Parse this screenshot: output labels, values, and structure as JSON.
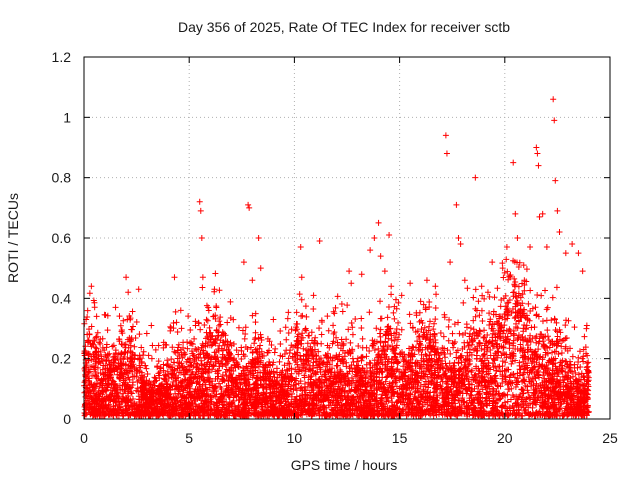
{
  "chart_data": {
    "type": "scatter",
    "title": "Day 356 of 2025, Rate Of TEC Index for receiver sctb",
    "xlabel": "GPS time / hours",
    "ylabel": "ROTI / TECUs",
    "xlim": [
      0,
      25
    ],
    "ylim": [
      0,
      1.2
    ],
    "xticks": [
      0,
      5,
      10,
      15,
      20,
      25
    ],
    "yticks": [
      0,
      0.2,
      0.4,
      0.6,
      0.8,
      1,
      1.2
    ],
    "grid": true,
    "marker": "+",
    "color": "#ff0000",
    "series": [
      {
        "name": "ROTI",
        "points": [
          [
            0.1,
            0.33
          ],
          [
            0.15,
            0.28
          ],
          [
            0.35,
            0.44
          ],
          [
            0.6,
            0.34
          ],
          [
            1.5,
            0.37
          ],
          [
            2.0,
            0.47
          ],
          [
            2.1,
            0.42
          ],
          [
            2.6,
            0.43
          ],
          [
            3.2,
            0.31
          ],
          [
            4.3,
            0.47
          ],
          [
            4.6,
            0.36
          ],
          [
            5.3,
            0.31
          ],
          [
            5.5,
            0.72
          ],
          [
            5.55,
            0.69
          ],
          [
            5.6,
            0.6
          ],
          [
            5.65,
            0.47
          ],
          [
            5.9,
            0.37
          ],
          [
            6.2,
            0.43
          ],
          [
            7.6,
            0.52
          ],
          [
            7.8,
            0.71
          ],
          [
            7.85,
            0.7
          ],
          [
            8.0,
            0.46
          ],
          [
            8.3,
            0.6
          ],
          [
            8.4,
            0.5
          ],
          [
            9.0,
            0.33
          ],
          [
            10.3,
            0.57
          ],
          [
            10.35,
            0.47
          ],
          [
            11.2,
            0.59
          ],
          [
            11.9,
            0.35
          ],
          [
            12.6,
            0.49
          ],
          [
            12.7,
            0.45
          ],
          [
            13.2,
            0.48
          ],
          [
            13.6,
            0.56
          ],
          [
            13.8,
            0.6
          ],
          [
            14.0,
            0.65
          ],
          [
            14.1,
            0.54
          ],
          [
            14.3,
            0.49
          ],
          [
            14.5,
            0.61
          ],
          [
            14.6,
            0.44
          ],
          [
            15.1,
            0.41
          ],
          [
            15.5,
            0.45
          ],
          [
            16.0,
            0.39
          ],
          [
            16.3,
            0.46
          ],
          [
            16.7,
            0.44
          ],
          [
            17.2,
            0.94
          ],
          [
            17.25,
            0.88
          ],
          [
            17.4,
            0.52
          ],
          [
            17.7,
            0.71
          ],
          [
            17.8,
            0.6
          ],
          [
            17.9,
            0.58
          ],
          [
            18.1,
            0.46
          ],
          [
            18.6,
            0.8
          ],
          [
            18.9,
            0.44
          ],
          [
            19.2,
            0.42
          ],
          [
            19.4,
            0.52
          ],
          [
            19.9,
            0.5
          ],
          [
            20.1,
            0.57
          ],
          [
            20.4,
            0.85
          ],
          [
            20.5,
            0.68
          ],
          [
            20.6,
            0.6
          ],
          [
            20.9,
            0.51
          ],
          [
            21.2,
            0.57
          ],
          [
            21.5,
            0.9
          ],
          [
            21.55,
            0.88
          ],
          [
            21.6,
            0.84
          ],
          [
            21.65,
            0.67
          ],
          [
            21.8,
            0.68
          ],
          [
            22.0,
            0.57
          ],
          [
            22.3,
            1.06
          ],
          [
            22.35,
            0.99
          ],
          [
            22.4,
            0.79
          ],
          [
            22.5,
            0.69
          ],
          [
            22.6,
            0.62
          ],
          [
            22.9,
            0.55
          ],
          [
            23.2,
            0.58
          ],
          [
            23.5,
            0.55
          ],
          [
            23.7,
            0.49
          ],
          [
            23.9,
            0.31
          ]
        ],
        "dense_band": {
          "note": "thousands of points forming a continuous band",
          "x_range": [
            0,
            24
          ],
          "y_range": [
            0.01,
            0.33
          ]
        }
      }
    ]
  }
}
